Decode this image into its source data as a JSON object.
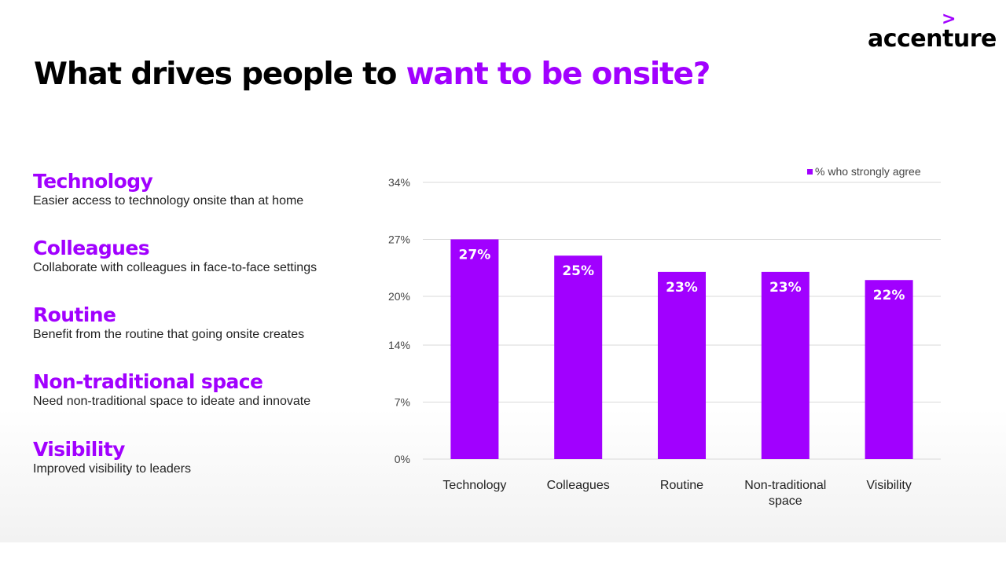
{
  "brand": {
    "chevron": ">",
    "name": "accenture"
  },
  "headline": {
    "main": "What drives people to ",
    "accent": "want to be onsite?"
  },
  "colors": {
    "accent": "#a100ff",
    "gridline": "#d9d9d9",
    "bar_label": "#ffffff"
  },
  "drivers": [
    {
      "title": "Technology",
      "desc": "Easier access to technology onsite than at home"
    },
    {
      "title": "Colleagues",
      "desc": "Collaborate with colleagues in face-to-face settings"
    },
    {
      "title": "Routine",
      "desc": "Benefit from the routine that going onsite creates"
    },
    {
      "title": "Non-traditional space",
      "desc": "Need non-traditional space to ideate and innovate"
    },
    {
      "title": "Visibility",
      "desc": "Improved visibility to leaders"
    }
  ],
  "chart_data": {
    "type": "bar",
    "categories": [
      [
        "Technology"
      ],
      [
        "Colleagues"
      ],
      [
        "Routine"
      ],
      [
        "Non-traditional",
        "space"
      ],
      [
        "Visibility"
      ]
    ],
    "series": [
      {
        "name": "% who strongly agree",
        "values": [
          27,
          25,
          23,
          23,
          22
        ]
      }
    ],
    "data_labels": [
      "27%",
      "25%",
      "23%",
      "23%",
      "22%"
    ],
    "yticks": [
      0,
      7,
      14,
      20,
      27,
      34
    ],
    "ytick_labels": [
      "0%",
      "7%",
      "14%",
      "20%",
      "27%",
      "34%"
    ],
    "ylim": [
      0,
      34
    ],
    "grid": true,
    "legend_position": "top-right"
  }
}
